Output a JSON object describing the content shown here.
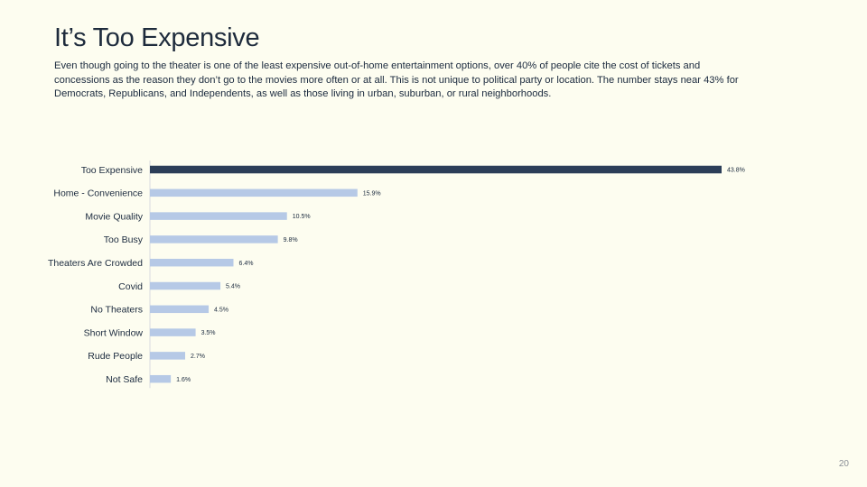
{
  "slide": {
    "title": "It’s Too Expensive",
    "subtitle": "Even though going to the theater is one of the least expensive out-of-home entertainment options, over 40% of people cite the cost of tickets and concessions as the reason they don’t go to the movies more often or at all. This is not unique to political party or location. The number stays near 43% for Democrats, Republicans, and Independents, as well as those living in urban, suburban, or rural neighborhoods.",
    "page_number": "20"
  },
  "chart_data": {
    "type": "bar",
    "orientation": "horizontal",
    "categories": [
      "Too Expensive",
      "Home - Convenience",
      "Movie Quality",
      "Too Busy",
      "Theaters Are Crowded",
      "Covid",
      "No Theaters",
      "Short Window",
      "Rude People",
      "Not Safe"
    ],
    "values": [
      43.8,
      15.9,
      10.5,
      9.8,
      6.4,
      5.4,
      4.5,
      3.5,
      2.7,
      1.6
    ],
    "data_labels": [
      "43.8%",
      "15.9%",
      "10.5%",
      "9.8%",
      "6.4%",
      "5.4%",
      "4.5%",
      "3.5%",
      "2.7%",
      "1.6%"
    ],
    "xlim": [
      0,
      43.8
    ],
    "highlight_index": 0,
    "colors": {
      "highlight": "#2c3e58",
      "default": "#b6c9e6",
      "axis": "#d9dce0"
    },
    "grid": false,
    "legend": "none"
  }
}
